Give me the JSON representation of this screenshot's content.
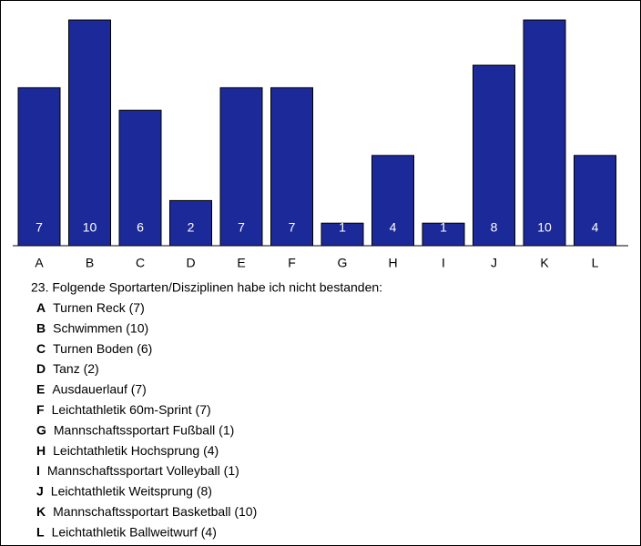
{
  "chart_data": {
    "type": "bar",
    "categories": [
      "A",
      "B",
      "C",
      "D",
      "E",
      "F",
      "G",
      "H",
      "I",
      "J",
      "K",
      "L"
    ],
    "values": [
      7,
      10,
      6,
      2,
      7,
      7,
      1,
      4,
      1,
      8,
      10,
      4
    ],
    "color": "#1c2a99",
    "ylim": [
      0,
      10
    ],
    "question": "23. Folgende Sportarten/Disziplinen habe ich nicht bestanden:",
    "legend": [
      {
        "key": "A",
        "text": "Turnen Reck (7)"
      },
      {
        "key": "B",
        "text": "Schwimmen (10)"
      },
      {
        "key": "C",
        "text": "Turnen Boden (6)"
      },
      {
        "key": "D",
        "text": "Tanz (2)"
      },
      {
        "key": "E",
        "text": "Ausdauerlauf (7)"
      },
      {
        "key": "F",
        "text": "Leichtathletik 60m-Sprint (7)"
      },
      {
        "key": "G",
        "text": "Mannschaftssportart Fußball (1)"
      },
      {
        "key": "H",
        "text": "Leichtathletik Hochsprung (4)"
      },
      {
        "key": "I",
        "text": "Mannschaftssportart Volleyball (1)"
      },
      {
        "key": "J",
        "text": "Leichtathletik Weitsprung (8)"
      },
      {
        "key": "K",
        "text": "Mannschaftssportart Basketball (10)"
      },
      {
        "key": "L",
        "text": "Leichtathletik Ballweitwurf (4)"
      }
    ]
  }
}
